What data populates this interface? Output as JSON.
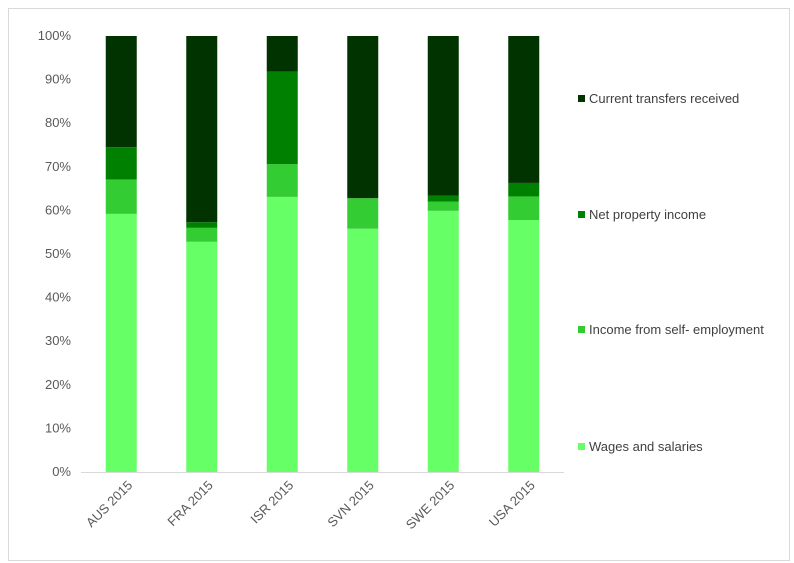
{
  "chart_data": {
    "type": "bar",
    "stacked": true,
    "percent_stacked": true,
    "categories": [
      "AUS 2015",
      "FRA 2015",
      "ISR 2015",
      "SVN 2015",
      "SWE 2015",
      "USA 2015"
    ],
    "series": [
      {
        "name": "Wages and salaries",
        "color": "#66ff66",
        "values": [
          59.2,
          52.8,
          63.1,
          55.8,
          59.9,
          57.8
        ]
      },
      {
        "name": "Income from self- employment",
        "color": "#33cc33",
        "values": [
          7.9,
          3.2,
          7.5,
          7.0,
          2.1,
          5.4
        ]
      },
      {
        "name": "Net property income",
        "color": "#008000",
        "values": [
          7.4,
          1.3,
          21.2,
          0.0,
          1.4,
          3.1
        ]
      },
      {
        "name": "Current transfers received",
        "color": "#003300",
        "values": [
          25.5,
          42.7,
          8.2,
          37.2,
          36.6,
          33.7
        ]
      }
    ],
    "yticks": [
      "0%",
      "10%",
      "20%",
      "30%",
      "40%",
      "50%",
      "60%",
      "70%",
      "80%",
      "90%",
      "100%"
    ],
    "ylim": [
      0,
      100
    ],
    "title": "",
    "xlabel": "",
    "ylabel": "",
    "legend_position": "right",
    "legend_order": [
      "Current transfers received",
      "Net property income",
      "Income from self- employment",
      "Wages and salaries"
    ],
    "grid": false
  }
}
